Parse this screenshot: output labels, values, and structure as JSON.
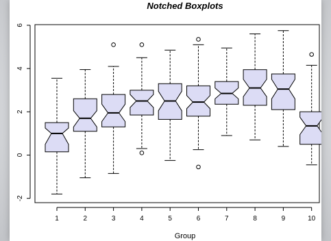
{
  "chart_data": {
    "type": "boxplot",
    "title": "Notched Boxplots",
    "xlabel": "Group",
    "ylabel": "",
    "ylim": [
      -2.2,
      6.3
    ],
    "y_ticks": [
      -2,
      0,
      2,
      4,
      6
    ],
    "categories": [
      "1",
      "2",
      "3",
      "4",
      "5",
      "6",
      "7",
      "8",
      "9",
      "10"
    ],
    "box_fill": "#dcdcf5",
    "box_stroke": "#000000",
    "boxes": [
      {
        "group": "1",
        "whisker_low": -1.8,
        "q1": 0.15,
        "notch_low": 0.5,
        "median": 1.0,
        "notch_high": 1.25,
        "q3": 1.5,
        "whisker_high": 3.55,
        "outliers": []
      },
      {
        "group": "2",
        "whisker_low": -1.05,
        "q1": 1.1,
        "notch_low": 1.3,
        "median": 1.7,
        "notch_high": 2.05,
        "q3": 2.6,
        "whisker_high": 3.95,
        "outliers": []
      },
      {
        "group": "3",
        "whisker_low": -0.85,
        "q1": 1.3,
        "notch_low": 1.55,
        "median": 1.95,
        "notch_high": 2.35,
        "q3": 2.8,
        "whisker_high": 4.1,
        "outliers": [
          5.1
        ]
      },
      {
        "group": "4",
        "whisker_low": 0.3,
        "q1": 1.85,
        "notch_low": 2.2,
        "median": 2.5,
        "notch_high": 2.8,
        "q3": 3.0,
        "whisker_high": 4.5,
        "outliers": [
          5.1,
          0.1
        ]
      },
      {
        "group": "5",
        "whisker_low": -0.25,
        "q1": 1.65,
        "notch_low": 2.05,
        "median": 2.5,
        "notch_high": 2.95,
        "q3": 3.3,
        "whisker_high": 4.85,
        "outliers": []
      },
      {
        "group": "6",
        "whisker_low": 0.25,
        "q1": 1.8,
        "notch_low": 2.15,
        "median": 2.45,
        "notch_high": 2.75,
        "q3": 3.2,
        "whisker_high": 5.1,
        "outliers": [
          5.35,
          -0.55
        ]
      },
      {
        "group": "7",
        "whisker_low": 0.9,
        "q1": 2.35,
        "notch_low": 2.6,
        "median": 2.85,
        "notch_high": 3.1,
        "q3": 3.4,
        "whisker_high": 4.95,
        "outliers": []
      },
      {
        "group": "8",
        "whisker_low": 0.7,
        "q1": 2.3,
        "notch_low": 2.7,
        "median": 3.1,
        "notch_high": 3.5,
        "q3": 3.95,
        "whisker_high": 5.6,
        "outliers": []
      },
      {
        "group": "9",
        "whisker_low": 0.4,
        "q1": 2.1,
        "notch_low": 2.6,
        "median": 3.05,
        "notch_high": 3.5,
        "q3": 3.75,
        "whisker_high": 5.75,
        "outliers": []
      },
      {
        "group": "10",
        "whisker_low": -0.45,
        "q1": 0.5,
        "notch_low": 0.95,
        "median": 1.35,
        "notch_high": 1.75,
        "q3": 2.0,
        "whisker_high": 4.15,
        "outliers": [
          4.65
        ]
      }
    ]
  }
}
